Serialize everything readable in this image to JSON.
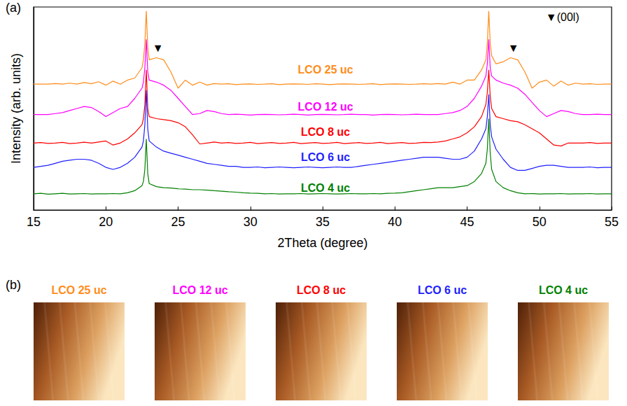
{
  "chart_data": {
    "type": "line",
    "panel": "(a)",
    "x_label": "2Theta (degree)",
    "y_label": "Intensity (arb. units)",
    "xlim": [
      15,
      55
    ],
    "xticks": [
      15,
      20,
      25,
      30,
      35,
      40,
      45,
      50,
      55
    ],
    "ylim": [
      0,
      100
    ],
    "tick_labels": "x",
    "grid": false,
    "x": [
      15,
      15.5,
      16,
      16.5,
      17,
      17.5,
      18,
      18.5,
      19,
      19.5,
      20,
      20.5,
      21,
      21.5,
      22,
      22.5,
      22.6,
      22.7,
      22.8,
      22.9,
      23,
      23.5,
      24,
      24.5,
      25,
      25.5,
      26,
      26.5,
      27,
      27.5,
      28,
      28.5,
      29,
      29.5,
      30,
      30.5,
      31,
      31.5,
      32,
      32.5,
      33,
      33.5,
      34,
      34.5,
      35,
      35.5,
      36,
      36.5,
      37,
      37.5,
      38,
      38.5,
      39,
      39.5,
      40,
      40.5,
      41,
      41.5,
      42,
      42.5,
      43,
      43.5,
      44,
      44.5,
      45,
      45.5,
      46,
      46.3,
      46.4,
      46.5,
      46.6,
      46.7,
      47,
      47.5,
      48,
      48.5,
      49,
      49.5,
      50,
      50.5,
      51,
      51.5,
      52,
      52.5,
      53,
      53.5,
      54,
      54.5,
      55
    ],
    "series": [
      {
        "name": "LCO 25 uc",
        "color": "#ff8c1a",
        "label_at": [
          35.2,
          69
        ],
        "values": [
          62,
          62,
          62,
          62.3,
          62,
          62.5,
          62,
          62.8,
          62.2,
          63.2,
          61.5,
          63.5,
          62,
          64,
          65,
          70,
          74,
          82,
          98,
          80,
          74,
          75,
          74,
          68,
          60,
          64,
          61.5,
          63,
          61.5,
          62.3,
          62,
          62.2,
          61.8,
          62,
          62.1,
          61.9,
          62,
          62.2,
          61.8,
          62,
          62.1,
          62,
          61.9,
          62.2,
          62,
          61.8,
          62,
          62.1,
          62,
          61.9,
          62,
          62.2,
          61.8,
          62,
          62.1,
          62,
          61.9,
          62,
          62.2,
          62,
          62.3,
          62,
          63,
          62,
          64,
          64,
          69,
          74,
          82,
          98,
          82,
          76,
          72,
          73,
          75,
          74,
          68,
          60,
          63,
          64,
          61,
          63.5,
          61.5,
          62.5,
          62,
          62.2,
          61.9,
          62,
          62
        ]
      },
      {
        "name": "LCO 12 uc",
        "color": "#ff00ff",
        "label_at": [
          35.2,
          50.7
        ],
        "values": [
          47,
          47,
          47,
          47.5,
          48,
          49,
          50,
          51,
          50.5,
          48.5,
          46,
          48,
          50,
          51,
          55,
          60,
          63,
          70,
          84,
          68,
          64,
          63,
          61.5,
          59,
          55,
          51,
          47,
          47.5,
          49,
          48.5,
          47.5,
          47,
          47.2,
          47,
          46.8,
          47,
          47.1,
          47,
          46.9,
          47,
          47.2,
          47,
          46.8,
          47,
          47.1,
          47,
          46.9,
          47,
          47.2,
          47,
          47,
          46.8,
          47,
          47.1,
          47,
          46.9,
          47,
          47.2,
          47,
          47,
          47,
          47.5,
          48,
          49,
          51,
          55,
          61,
          66,
          72,
          84,
          70,
          66,
          64,
          62.5,
          61.5,
          60,
          57,
          53,
          49,
          46,
          47.5,
          49,
          48.5,
          47.5,
          47,
          47,
          47.2,
          47,
          47
        ]
      },
      {
        "name": "LCO 8 uc",
        "color": "#ff0000",
        "label_at": [
          35.2,
          38.6
        ],
        "values": [
          33,
          33.2,
          32.8,
          33,
          33.3,
          32.7,
          33,
          33.4,
          33,
          33.5,
          34,
          32,
          33,
          35,
          38,
          42,
          45,
          52,
          69,
          50,
          46,
          45,
          44.5,
          44,
          43,
          41,
          37,
          32.5,
          33,
          33.5,
          33,
          33.2,
          32.8,
          33,
          33.3,
          32.7,
          33,
          33.2,
          32.8,
          33,
          33.3,
          32.7,
          33,
          33.2,
          32.8,
          33,
          33.3,
          32.7,
          33,
          33.2,
          32.8,
          33,
          33.3,
          32.7,
          33,
          33.2,
          32.8,
          33,
          33.3,
          33.2,
          33.5,
          34,
          35,
          36,
          38,
          41,
          46,
          52,
          58,
          69,
          56,
          50,
          46,
          45,
          44,
          43.5,
          42,
          40,
          38,
          35,
          32,
          31.5,
          33,
          33,
          33,
          33.2,
          32.8,
          33,
          33
        ]
      },
      {
        "name": "LCO 6 uc",
        "color": "#1f1fff",
        "label_at": [
          35.2,
          25.9
        ],
        "values": [
          21,
          21.5,
          22,
          23,
          24,
          24.5,
          25,
          25,
          24.5,
          23,
          21,
          20,
          21,
          23,
          26,
          31,
          34,
          42,
          59,
          40,
          34,
          31,
          29,
          28,
          27,
          26,
          25,
          24,
          23,
          22.5,
          22,
          21.5,
          21.5,
          21,
          21,
          21.2,
          20.8,
          21,
          21.2,
          21,
          20.8,
          21,
          21.2,
          21,
          20.8,
          21,
          21.2,
          21,
          21,
          21.5,
          22,
          22.5,
          23,
          23.5,
          24,
          24.5,
          25,
          25.5,
          26,
          26,
          26,
          25.5,
          25,
          25,
          26,
          29,
          35,
          40,
          46,
          57,
          42,
          36,
          30,
          25,
          21,
          19.5,
          19.5,
          20.5,
          21.5,
          22,
          22,
          21.5,
          21,
          21,
          21,
          21.2,
          20.8,
          21,
          21
        ]
      },
      {
        "name": "LCO 4 uc",
        "color": "#008000",
        "label_at": [
          35.2,
          11
        ],
        "values": [
          8,
          8.2,
          7.8,
          8,
          8.2,
          7.9,
          8,
          8.1,
          7.9,
          8,
          8,
          8.1,
          8,
          8.5,
          9.5,
          12,
          14,
          20,
          35,
          18,
          13,
          11.5,
          11,
          10.8,
          10.5,
          10.3,
          10,
          10,
          9.8,
          9.5,
          9.3,
          9,
          8.8,
          8.5,
          8.3,
          8.2,
          8,
          8.1,
          7.9,
          8,
          8,
          8.1,
          7.9,
          8,
          8.1,
          8,
          7.9,
          8,
          8.1,
          8,
          8,
          8.1,
          8,
          8.2,
          8.3,
          8.5,
          9,
          9.5,
          10,
          10.5,
          11,
          11,
          11,
          11.5,
          12,
          14,
          18,
          23,
          30,
          45,
          28,
          20,
          14,
          11,
          9.5,
          8.5,
          8,
          8.1,
          7.9,
          8,
          8,
          8.1,
          7.9,
          8,
          8,
          8.1,
          7.9,
          8,
          8
        ]
      }
    ],
    "annotations": [
      {
        "text": "▼",
        "x": 23.6,
        "y": 80
      },
      {
        "text": "▼",
        "x": 48.2,
        "y": 80
      },
      {
        "text": "▼(00l)",
        "x": 51.6,
        "y": 95
      }
    ]
  },
  "panel_b": {
    "panel": "(b)",
    "images": [
      {
        "title": "LCO 25 uc",
        "color": "#ff8c1a"
      },
      {
        "title": "LCO 12 uc",
        "color": "#ff00ff"
      },
      {
        "title": "LCO 8 uc",
        "color": "#ff0000"
      },
      {
        "title": "LCO 6 uc",
        "color": "#1f1fff"
      },
      {
        "title": "LCO 4 uc",
        "color": "#008000"
      }
    ]
  }
}
